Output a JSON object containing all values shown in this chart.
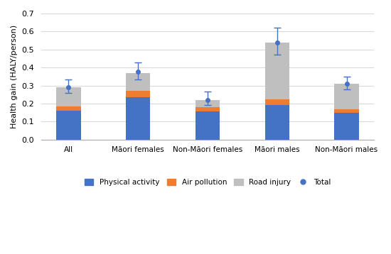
{
  "categories": [
    "All",
    "Māori females",
    "Non-Māori females",
    "Māori males",
    "Non-Māori males"
  ],
  "physical_activity": [
    0.16,
    0.235,
    0.158,
    0.19,
    0.148
  ],
  "air_pollution": [
    0.025,
    0.035,
    0.02,
    0.033,
    0.02
  ],
  "road_injury": [
    0.105,
    0.1,
    0.04,
    0.315,
    0.14
  ],
  "total_dot": [
    0.29,
    0.375,
    0.22,
    0.54,
    0.308
  ],
  "error_upper": [
    0.045,
    0.055,
    0.045,
    0.08,
    0.04
  ],
  "error_lower": [
    0.03,
    0.04,
    0.03,
    0.07,
    0.03
  ],
  "colors": {
    "physical_activity": "#4472C4",
    "air_pollution": "#ED7D31",
    "road_injury": "#BFBFBF",
    "total_dot": "#4472C4"
  },
  "ylim": [
    0.0,
    0.7
  ],
  "yticks": [
    0.0,
    0.1,
    0.2,
    0.3,
    0.4,
    0.5,
    0.6,
    0.7
  ],
  "ylabel": "Health gain (HALY/person)",
  "bar_width": 0.35,
  "figure_facecolor": "#ffffff",
  "axes_facecolor": "#ffffff",
  "grid_color": "#D9D9D9"
}
